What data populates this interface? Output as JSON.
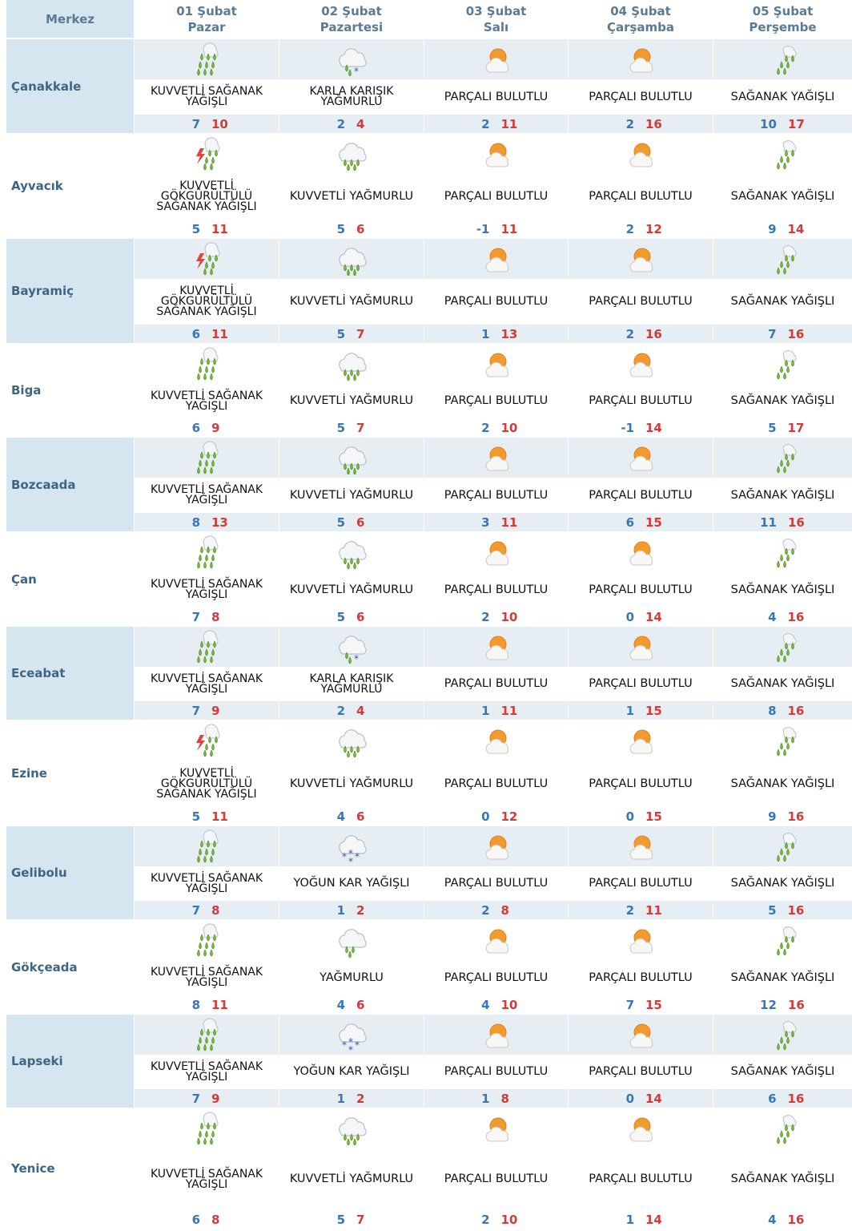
{
  "header": {
    "merkez": "Merkez",
    "days": [
      {
        "date": "01 Şubat",
        "weekday": "Pazar"
      },
      {
        "date": "02 Şubat",
        "weekday": "Pazartesi"
      },
      {
        "date": "03 Şubat",
        "weekday": "Salı"
      },
      {
        "date": "04 Şubat",
        "weekday": "Çarşamba"
      },
      {
        "date": "05 Şubat",
        "weekday": "Perşembe"
      }
    ]
  },
  "rows": [
    {
      "city": "Çanakkale",
      "days": [
        {
          "icon": "heavy-shower-icon",
          "desc": "KUVVETLİ SAĞANAK\nYAĞIŞLI",
          "min": "7",
          "max": "10"
        },
        {
          "icon": "sleet-icon",
          "desc": "KARLA KARIŞIK\nYAĞMURLU",
          "min": "2",
          "max": "4"
        },
        {
          "icon": "partly-cloudy-icon",
          "desc": "PARÇALI BULUTLU",
          "min": "2",
          "max": "11"
        },
        {
          "icon": "partly-cloudy-icon",
          "desc": "PARÇALI BULUTLU",
          "min": "2",
          "max": "16"
        },
        {
          "icon": "shower-icon",
          "desc": "SAĞANAK YAĞIŞLI",
          "min": "10",
          "max": "17"
        }
      ]
    },
    {
      "city": "Ayvacık",
      "days": [
        {
          "icon": "thunder-shower-icon",
          "desc": "KUVVETLİ\nGÖKGÜRÜLTÜLÜ\nSAĞANAK YAĞIŞLI",
          "min": "5",
          "max": "11"
        },
        {
          "icon": "heavy-rain-icon",
          "desc": "KUVVETLİ YAĞMURLU",
          "min": "5",
          "max": "6"
        },
        {
          "icon": "partly-cloudy-icon",
          "desc": "PARÇALI BULUTLU",
          "min": "-1",
          "max": "11"
        },
        {
          "icon": "partly-cloudy-icon",
          "desc": "PARÇALI BULUTLU",
          "min": "2",
          "max": "12"
        },
        {
          "icon": "shower-icon",
          "desc": "SAĞANAK YAĞIŞLI",
          "min": "9",
          "max": "14"
        }
      ]
    },
    {
      "city": "Bayramiç",
      "days": [
        {
          "icon": "thunder-shower-icon",
          "desc": "KUVVETLİ\nGÖKGÜRÜLTÜLÜ\nSAĞANAK YAĞIŞLI",
          "min": "6",
          "max": "11"
        },
        {
          "icon": "heavy-rain-icon",
          "desc": "KUVVETLİ YAĞMURLU",
          "min": "5",
          "max": "7"
        },
        {
          "icon": "partly-cloudy-icon",
          "desc": "PARÇALI BULUTLU",
          "min": "1",
          "max": "13"
        },
        {
          "icon": "partly-cloudy-icon",
          "desc": "PARÇALI BULUTLU",
          "min": "2",
          "max": "16"
        },
        {
          "icon": "shower-icon",
          "desc": "SAĞANAK YAĞIŞLI",
          "min": "7",
          "max": "16"
        }
      ]
    },
    {
      "city": "Biga",
      "days": [
        {
          "icon": "heavy-shower-icon",
          "desc": "KUVVETLİ SAĞANAK\nYAĞIŞLI",
          "min": "6",
          "max": "9"
        },
        {
          "icon": "heavy-rain-icon",
          "desc": "KUVVETLİ YAĞMURLU",
          "min": "5",
          "max": "7"
        },
        {
          "icon": "partly-cloudy-icon",
          "desc": "PARÇALI BULUTLU",
          "min": "2",
          "max": "10"
        },
        {
          "icon": "partly-cloudy-icon",
          "desc": "PARÇALI BULUTLU",
          "min": "-1",
          "max": "14"
        },
        {
          "icon": "shower-icon",
          "desc": "SAĞANAK YAĞIŞLI",
          "min": "5",
          "max": "17"
        }
      ]
    },
    {
      "city": "Bozcaada",
      "days": [
        {
          "icon": "heavy-shower-icon",
          "desc": "KUVVETLİ SAĞANAK\nYAĞIŞLI",
          "min": "8",
          "max": "13"
        },
        {
          "icon": "heavy-rain-icon",
          "desc": "KUVVETLİ YAĞMURLU",
          "min": "5",
          "max": "6"
        },
        {
          "icon": "partly-cloudy-icon",
          "desc": "PARÇALI BULUTLU",
          "min": "3",
          "max": "11"
        },
        {
          "icon": "partly-cloudy-icon",
          "desc": "PARÇALI BULUTLU",
          "min": "6",
          "max": "15"
        },
        {
          "icon": "shower-icon",
          "desc": "SAĞANAK YAĞIŞLI",
          "min": "11",
          "max": "16"
        }
      ]
    },
    {
      "city": "Çan",
      "days": [
        {
          "icon": "heavy-shower-icon",
          "desc": "KUVVETLİ SAĞANAK\nYAĞIŞLI",
          "min": "7",
          "max": "8"
        },
        {
          "icon": "heavy-rain-icon",
          "desc": "KUVVETLİ YAĞMURLU",
          "min": "5",
          "max": "6"
        },
        {
          "icon": "partly-cloudy-icon",
          "desc": "PARÇALI BULUTLU",
          "min": "2",
          "max": "10"
        },
        {
          "icon": "partly-cloudy-icon",
          "desc": "PARÇALI BULUTLU",
          "min": "0",
          "max": "14"
        },
        {
          "icon": "shower-icon",
          "desc": "SAĞANAK YAĞIŞLI",
          "min": "4",
          "max": "16"
        }
      ]
    },
    {
      "city": "Eceabat",
      "days": [
        {
          "icon": "heavy-shower-icon",
          "desc": "KUVVETLİ SAĞANAK\nYAĞIŞLI",
          "min": "7",
          "max": "9"
        },
        {
          "icon": "sleet-icon",
          "desc": "KARLA KARIŞIK\nYAĞMURLU",
          "min": "2",
          "max": "4"
        },
        {
          "icon": "partly-cloudy-icon",
          "desc": "PARÇALI BULUTLU",
          "min": "1",
          "max": "11"
        },
        {
          "icon": "partly-cloudy-icon",
          "desc": "PARÇALI BULUTLU",
          "min": "1",
          "max": "15"
        },
        {
          "icon": "shower-icon",
          "desc": "SAĞANAK YAĞIŞLI",
          "min": "8",
          "max": "16"
        }
      ]
    },
    {
      "city": "Ezine",
      "days": [
        {
          "icon": "thunder-shower-icon",
          "desc": "KUVVETLİ\nGÖKGÜRÜLTÜLÜ\nSAĞANAK YAĞIŞLI",
          "min": "5",
          "max": "11"
        },
        {
          "icon": "heavy-rain-icon",
          "desc": "KUVVETLİ YAĞMURLU",
          "min": "4",
          "max": "6"
        },
        {
          "icon": "partly-cloudy-icon",
          "desc": "PARÇALI BULUTLU",
          "min": "0",
          "max": "12"
        },
        {
          "icon": "partly-cloudy-icon",
          "desc": "PARÇALI BULUTLU",
          "min": "0",
          "max": "15"
        },
        {
          "icon": "shower-icon",
          "desc": "SAĞANAK YAĞIŞLI",
          "min": "9",
          "max": "16"
        }
      ]
    },
    {
      "city": "Gelibolu",
      "days": [
        {
          "icon": "heavy-shower-icon",
          "desc": "KUVVETLİ SAĞANAK\nYAĞIŞLI",
          "min": "7",
          "max": "8"
        },
        {
          "icon": "heavy-snow-icon",
          "desc": "YOĞUN KAR YAĞIŞLI",
          "min": "1",
          "max": "2"
        },
        {
          "icon": "partly-cloudy-icon",
          "desc": "PARÇALI BULUTLU",
          "min": "2",
          "max": "8"
        },
        {
          "icon": "partly-cloudy-icon",
          "desc": "PARÇALI BULUTLU",
          "min": "2",
          "max": "11"
        },
        {
          "icon": "shower-icon",
          "desc": "SAĞANAK YAĞIŞLI",
          "min": "5",
          "max": "16"
        }
      ]
    },
    {
      "city": "Gökçeada",
      "days": [
        {
          "icon": "heavy-shower-icon",
          "desc": "KUVVETLİ SAĞANAK\nYAĞIŞLI",
          "min": "8",
          "max": "11"
        },
        {
          "icon": "rain-icon",
          "desc": "YAĞMURLU",
          "min": "4",
          "max": "6"
        },
        {
          "icon": "partly-cloudy-icon",
          "desc": "PARÇALI BULUTLU",
          "min": "4",
          "max": "10"
        },
        {
          "icon": "partly-cloudy-icon",
          "desc": "PARÇALI BULUTLU",
          "min": "7",
          "max": "15"
        },
        {
          "icon": "shower-icon",
          "desc": "SAĞANAK YAĞIŞLI",
          "min": "12",
          "max": "16"
        }
      ]
    },
    {
      "city": "Lapseki",
      "days": [
        {
          "icon": "heavy-shower-icon",
          "desc": "KUVVETLİ SAĞANAK\nYAĞIŞLI",
          "min": "7",
          "max": "9"
        },
        {
          "icon": "heavy-snow-icon",
          "desc": "YOĞUN KAR YAĞIŞLI",
          "min": "1",
          "max": "2"
        },
        {
          "icon": "partly-cloudy-icon",
          "desc": "PARÇALI BULUTLU",
          "min": "1",
          "max": "8"
        },
        {
          "icon": "partly-cloudy-icon",
          "desc": "PARÇALI BULUTLU",
          "min": "0",
          "max": "14"
        },
        {
          "icon": "shower-icon",
          "desc": "SAĞANAK YAĞIŞLI",
          "min": "6",
          "max": "16"
        }
      ]
    },
    {
      "city": "Yenice",
      "days": [
        {
          "icon": "heavy-shower-icon",
          "desc": "KUVVETLİ SAĞANAK\nYAĞIŞLI",
          "min": "6",
          "max": "8"
        },
        {
          "icon": "heavy-rain-icon",
          "desc": "KUVVETLİ YAĞMURLU",
          "min": "5",
          "max": "7"
        },
        {
          "icon": "partly-cloudy-icon",
          "desc": "PARÇALI BULUTLU",
          "min": "2",
          "max": "10"
        },
        {
          "icon": "partly-cloudy-icon",
          "desc": "PARÇALI BULUTLU",
          "min": "1",
          "max": "14"
        },
        {
          "icon": "shower-icon",
          "desc": "SAĞANAK YAĞIŞLI",
          "min": "4",
          "max": "16"
        }
      ]
    }
  ],
  "colors": {
    "header_text": "#5b7a93",
    "city_text": "#3f6585",
    "shade_city": "#d6e6f0",
    "shade_cell": "#e6eef4",
    "min_temp": "#3876b8",
    "max_temp": "#d43a3a",
    "rain_green": "#78b83c",
    "sun_orange": "#f29a2e"
  }
}
